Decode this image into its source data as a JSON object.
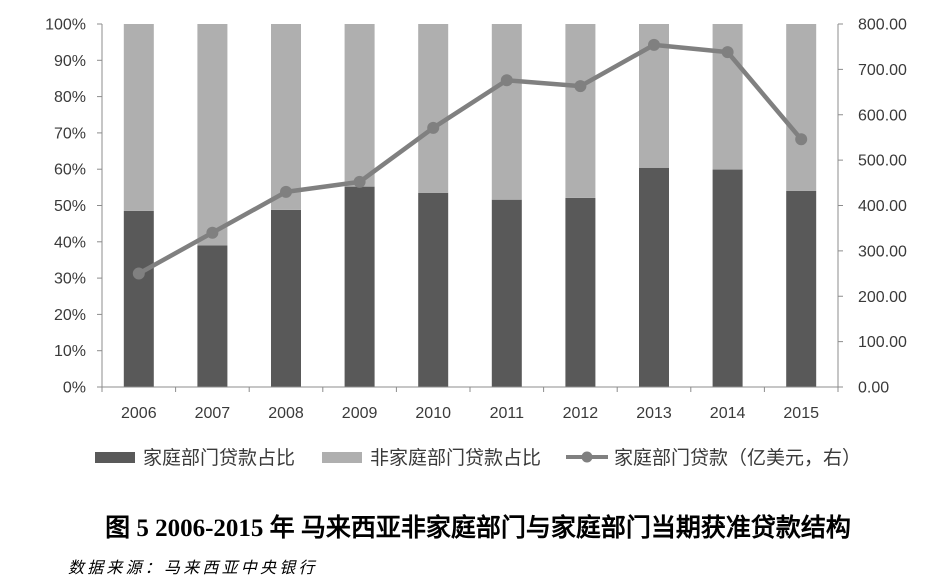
{
  "chart_data": {
    "type": "bar",
    "stacked": true,
    "categories": [
      "2006",
      "2007",
      "2008",
      "2009",
      "2010",
      "2011",
      "2012",
      "2013",
      "2014",
      "2015"
    ],
    "series": [
      {
        "name": "家庭部门贷款占比",
        "type": "bar",
        "axis": "left",
        "color": "#595959",
        "values": [
          48.5,
          39.0,
          48.8,
          55.2,
          53.5,
          51.6,
          52.1,
          60.4,
          59.9,
          54.0
        ]
      },
      {
        "name": "非家庭部门贷款占比",
        "type": "bar",
        "axis": "left",
        "color": "#afafaf",
        "values": [
          51.5,
          61.0,
          51.2,
          44.8,
          46.5,
          48.4,
          47.9,
          39.6,
          40.1,
          46.0
        ]
      },
      {
        "name": "家庭部门贷款（亿美元，右）",
        "type": "line",
        "axis": "right",
        "color": "#808080",
        "marker": "circle",
        "values": [
          250,
          340,
          430,
          452,
          571,
          676,
          663,
          754,
          738,
          546
        ]
      }
    ],
    "ylim": [
      0,
      100
    ],
    "yticks": [
      "0%",
      "10%",
      "20%",
      "30%",
      "40%",
      "50%",
      "60%",
      "70%",
      "80%",
      "90%",
      "100%"
    ],
    "y2lim": [
      0,
      800
    ],
    "y2ticks": [
      "0.00",
      "100.00",
      "200.00",
      "300.00",
      "400.00",
      "500.00",
      "600.00",
      "700.00",
      "800.00"
    ],
    "grid": false,
    "legend": "bottom",
    "title": "图 5 2006-2015 年  马来西亚非家庭部门与家庭部门当期获准贷款结构",
    "source": "数据来源：马来西亚中央银行"
  }
}
